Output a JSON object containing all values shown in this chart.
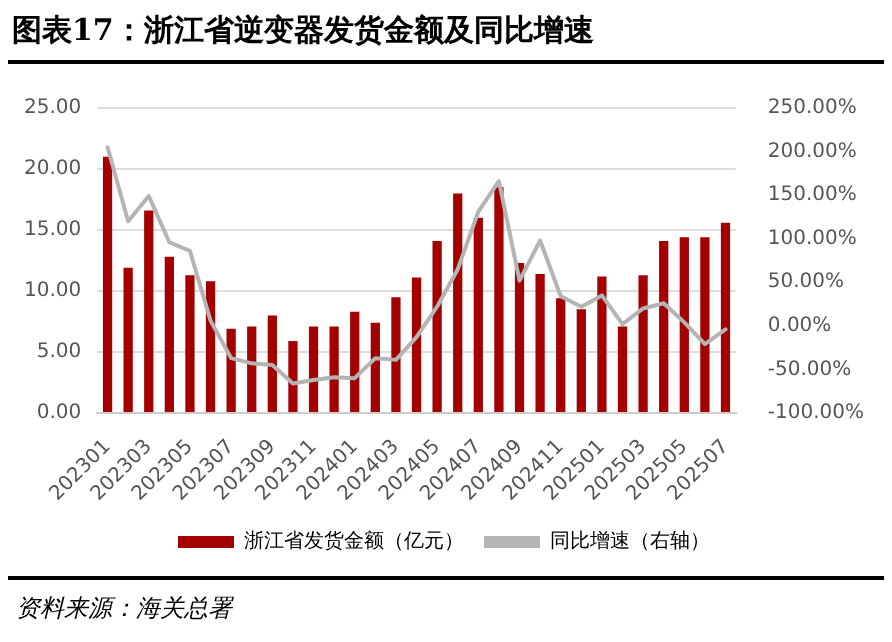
{
  "chart_data": {
    "type": "bar",
    "title": "图表17：浙江省逆变器发货金额及同比增速",
    "categories": [
      "202301",
      null,
      "202303",
      null,
      "202305",
      null,
      "202307",
      null,
      "202309",
      null,
      "202311",
      null,
      "202401",
      null,
      "202403",
      null,
      "202405",
      null,
      "202407",
      null,
      "202409",
      null,
      "202411",
      null,
      "202501",
      null,
      "202503",
      null,
      "202505",
      null,
      "202507"
    ],
    "series": [
      {
        "name": "浙江省发货金额（亿元）",
        "color": "#a50000",
        "values": [
          21.0,
          11.9,
          16.6,
          12.8,
          11.3,
          10.8,
          6.9,
          7.1,
          8.0,
          5.9,
          7.1,
          7.1,
          8.3,
          7.4,
          9.5,
          11.1,
          14.1,
          18.0,
          16.0,
          18.5,
          12.3,
          11.4,
          9.4,
          8.5,
          11.2,
          7.1,
          11.3,
          14.1,
          14.4,
          14.4,
          15.6
        ]
      },
      {
        "name": "同比增速（右轴）",
        "type": "line",
        "axis": "y2",
        "color": "#b4b4b4",
        "values": [
          205,
          120,
          149,
          96,
          86,
          6,
          -37,
          -43,
          -45,
          -66,
          -62,
          -59,
          -60,
          -37,
          -39,
          -13,
          22,
          65,
          131,
          166,
          52,
          98,
          34,
          22,
          35,
          2,
          20,
          26,
          4,
          -21,
          -4
        ]
      }
    ],
    "ylim": [
      0,
      25
    ],
    "yticks": [
      {
        "value": 0,
        "label": "0.00"
      },
      {
        "value": 5,
        "label": "5.00"
      },
      {
        "value": 10,
        "label": "10.00"
      },
      {
        "value": 15,
        "label": "15.00"
      },
      {
        "value": 20,
        "label": "20.00"
      },
      {
        "value": 25,
        "label": "25.00"
      }
    ],
    "y2lim": [
      -100,
      250
    ],
    "y2ticks": [
      {
        "value": -100,
        "label": "-100.00%"
      },
      {
        "value": -50,
        "label": "-50.00%"
      },
      {
        "value": 0,
        "label": "0.00%"
      },
      {
        "value": 50,
        "label": "50.00%"
      },
      {
        "value": 100,
        "label": "100.00%"
      },
      {
        "value": 150,
        "label": "150.00%"
      },
      {
        "value": 200,
        "label": "200.00%"
      },
      {
        "value": 250,
        "label": "250.00%"
      }
    ],
    "grid": "y",
    "legend": "bottom",
    "marker": "none",
    "line_style": "solid",
    "annotations": [
      "资料来源：海关总署"
    ]
  }
}
